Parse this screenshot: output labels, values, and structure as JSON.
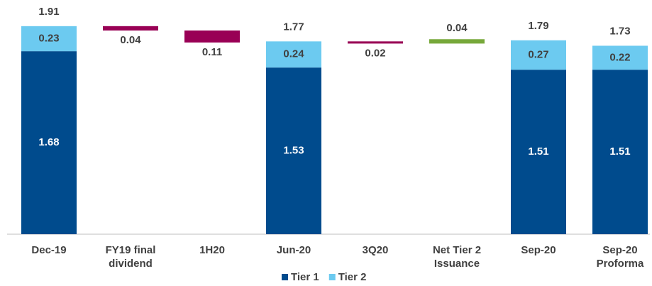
{
  "chart_data": {
    "type": "waterfall",
    "categories": [
      "Dec-19",
      "FY19 final dividend",
      "1H20",
      "Jun-20",
      "3Q20",
      "Net Tier 2 Issuance",
      "Sep-20",
      "Sep-20 Proforma"
    ],
    "series": [
      {
        "name": "Tier 1",
        "color": "#004b8d",
        "values": [
          1.68,
          null,
          null,
          1.53,
          null,
          null,
          1.51,
          1.51
        ]
      },
      {
        "name": "Tier 2",
        "color": "#6ccaf0",
        "values": [
          0.23,
          null,
          null,
          0.24,
          null,
          null,
          0.27,
          0.22
        ]
      }
    ],
    "totals": [
      1.91,
      null,
      null,
      1.77,
      null,
      null,
      1.79,
      1.73
    ],
    "changes": [
      null,
      -0.04,
      -0.11,
      null,
      -0.02,
      0.04,
      null,
      null
    ],
    "change_labels": [
      null,
      "0.04",
      "0.11",
      null,
      "0.02",
      "0.04",
      null,
      null
    ],
    "decrease_color": "#990055",
    "increase_color": "#77a83a",
    "ylim": [
      0,
      2.15
    ],
    "legend": "bottom"
  }
}
